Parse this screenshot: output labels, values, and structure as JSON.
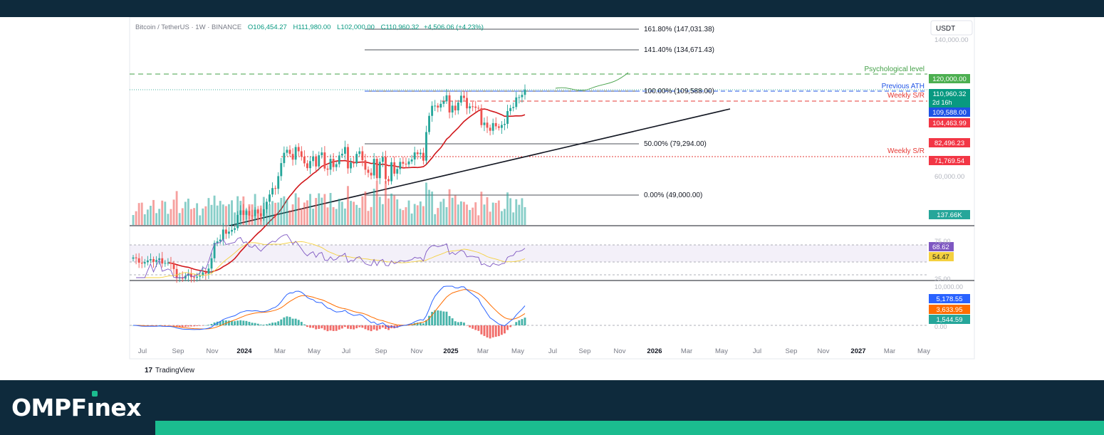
{
  "chart_data": {
    "type": "candlestick",
    "title": "Bitcoin / TetherUS · 1W · BINANCE",
    "ohlc_readout": {
      "o_label": "O",
      "o": "106,454.27",
      "h_label": "H",
      "h": "111,980.00",
      "l_label": "L",
      "l": "102,000.00",
      "c_label": "C",
      "c": "110,960.32",
      "change": "+4,506.06 (+4.23%)"
    },
    "currency": "USDT",
    "x_ticks": [
      "Jul",
      "Sep",
      "Nov",
      "2024",
      "Mar",
      "May",
      "Jul",
      "Sep",
      "Nov",
      "2025",
      "Mar",
      "May",
      "Jul",
      "Sep",
      "Nov",
      "2026",
      "Mar",
      "May",
      "Jul",
      "Sep",
      "Nov",
      "2027",
      "Mar",
      "May"
    ],
    "y_ticks": [
      "140,000.00",
      "60,000.00"
    ],
    "fib_levels": [
      {
        "label": "161.80% (147,031.38)",
        "value": 147031.38
      },
      {
        "label": "141.40% (134,671.43)",
        "value": 134671.43
      },
      {
        "label": "100.00% (109,588.00)",
        "value": 109588
      },
      {
        "label": "50.00% (79,294.00)",
        "value": 79294
      },
      {
        "label": "0.00% (49,000.00)",
        "value": 49000
      }
    ],
    "annotations": [
      {
        "label": "Psychological level",
        "value": 120000,
        "color": "#43a047"
      },
      {
        "label": "Previous ATH",
        "value": 109588,
        "color": "#1e53e5"
      },
      {
        "label": "Weekly S/R",
        "value": 104463.99,
        "color": "#e53935"
      },
      {
        "label": "Weekly S/R",
        "value": 71769.54,
        "color": "#e53935"
      }
    ],
    "price_badges": [
      {
        "text": "120,000.00",
        "color": "#4caf50"
      },
      {
        "text": "110,960.32",
        "sub": "2d 16h",
        "color": "#089981"
      },
      {
        "text": "109,588.00",
        "color": "#1e53e5"
      },
      {
        "text": "104,463.99",
        "color": "#f23645"
      },
      {
        "text": "82,496.23",
        "color": "#f23645"
      },
      {
        "text": "71,769.54",
        "color": "#f23645"
      },
      {
        "text": "137.66K",
        "color": "#26a69a"
      }
    ],
    "moving_average_last": 82496.23,
    "volume_last": "137.66K",
    "rsi": {
      "value": "68.62",
      "ma": "54.47",
      "upper_tick": "75.00",
      "lower_tick": "25.00"
    },
    "macd": {
      "macd": "5,178.55",
      "signal": "3,633.95",
      "histogram": "1,544.59",
      "top_tick": "10,000.00",
      "zero_tick": "0.00"
    }
  },
  "colors": {
    "up": "#26a69a",
    "down": "#ef5350",
    "ma": "#d0161a",
    "rsi": "#7e57c2",
    "rsi_ma": "#f4d03f",
    "macd": "#2962ff",
    "signal": "#ff6d00"
  },
  "footer": {
    "brand_prefix": "OMPF",
    "brand_i": "ı",
    "brand_suffix": "nex"
  },
  "watermark": "TradingView"
}
